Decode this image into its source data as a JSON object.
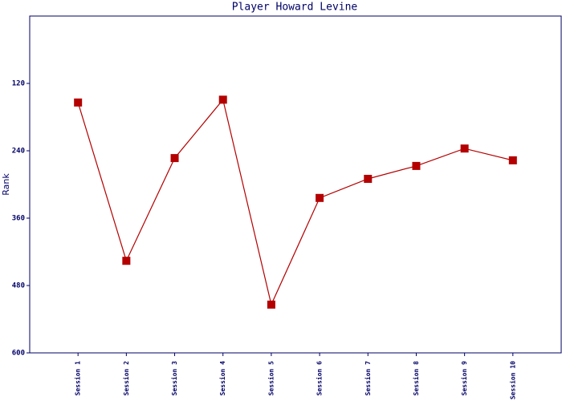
{
  "chart_data": {
    "type": "line",
    "title": "Player Howard Levine",
    "y_label": "Rank",
    "categories": [
      "Session 1",
      "Session 2",
      "Session 3",
      "Session 4",
      "Session 5",
      "Session 6",
      "Session 7",
      "Session 8",
      "Session 9",
      "Session 10"
    ],
    "series": [
      {
        "name": "Rank",
        "color": "#b40000",
        "values": [
          154,
          436,
          253,
          149,
          514,
          324,
          290,
          267,
          236,
          257
        ]
      }
    ],
    "ylim": [
      0,
      600
    ],
    "yticks": [
      120,
      240,
      360,
      480,
      600
    ],
    "y_inverted": true
  }
}
